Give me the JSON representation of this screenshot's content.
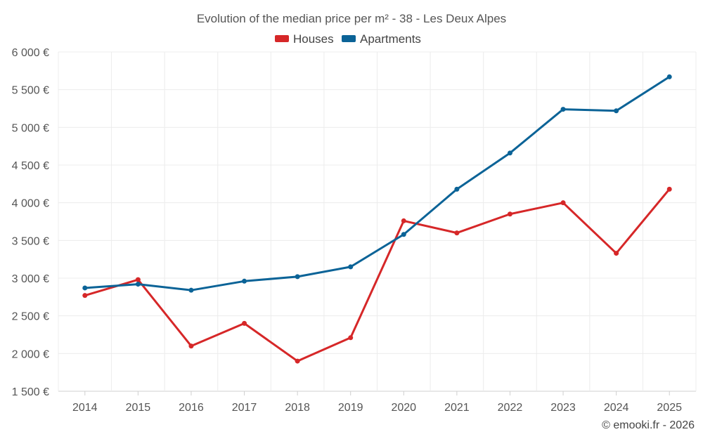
{
  "chart_data": {
    "type": "line",
    "title": "Evolution of the median price per m² - 38 - Les Deux Alpes",
    "categories": [
      "2014",
      "2015",
      "2016",
      "2017",
      "2018",
      "2019",
      "2020",
      "2021",
      "2022",
      "2023",
      "2024",
      "2025"
    ],
    "yticks": [
      1500,
      2000,
      2500,
      3000,
      3500,
      4000,
      4500,
      5000,
      5500,
      6000
    ],
    "ytick_labels": [
      "1 500 €",
      "2 000 €",
      "2 500 €",
      "3 000 €",
      "3 500 €",
      "4 000 €",
      "4 500 €",
      "5 000 €",
      "5 500 €",
      "6 000 €"
    ],
    "ylim": [
      1500,
      6000
    ],
    "xlabel": "",
    "ylabel": "",
    "legend_position": "top-center",
    "series": [
      {
        "name": "Houses",
        "color": "#d62728",
        "values": [
          2770,
          2980,
          2100,
          2400,
          1900,
          2210,
          3760,
          3600,
          3850,
          4000,
          3330,
          4180
        ]
      },
      {
        "name": "Apartments",
        "color": "#0b6397",
        "values": [
          2870,
          2920,
          2840,
          2960,
          3020,
          3150,
          3580,
          4180,
          4660,
          5240,
          5220,
          5670
        ]
      }
    ]
  },
  "credit": "© emooki.fr - 2026"
}
